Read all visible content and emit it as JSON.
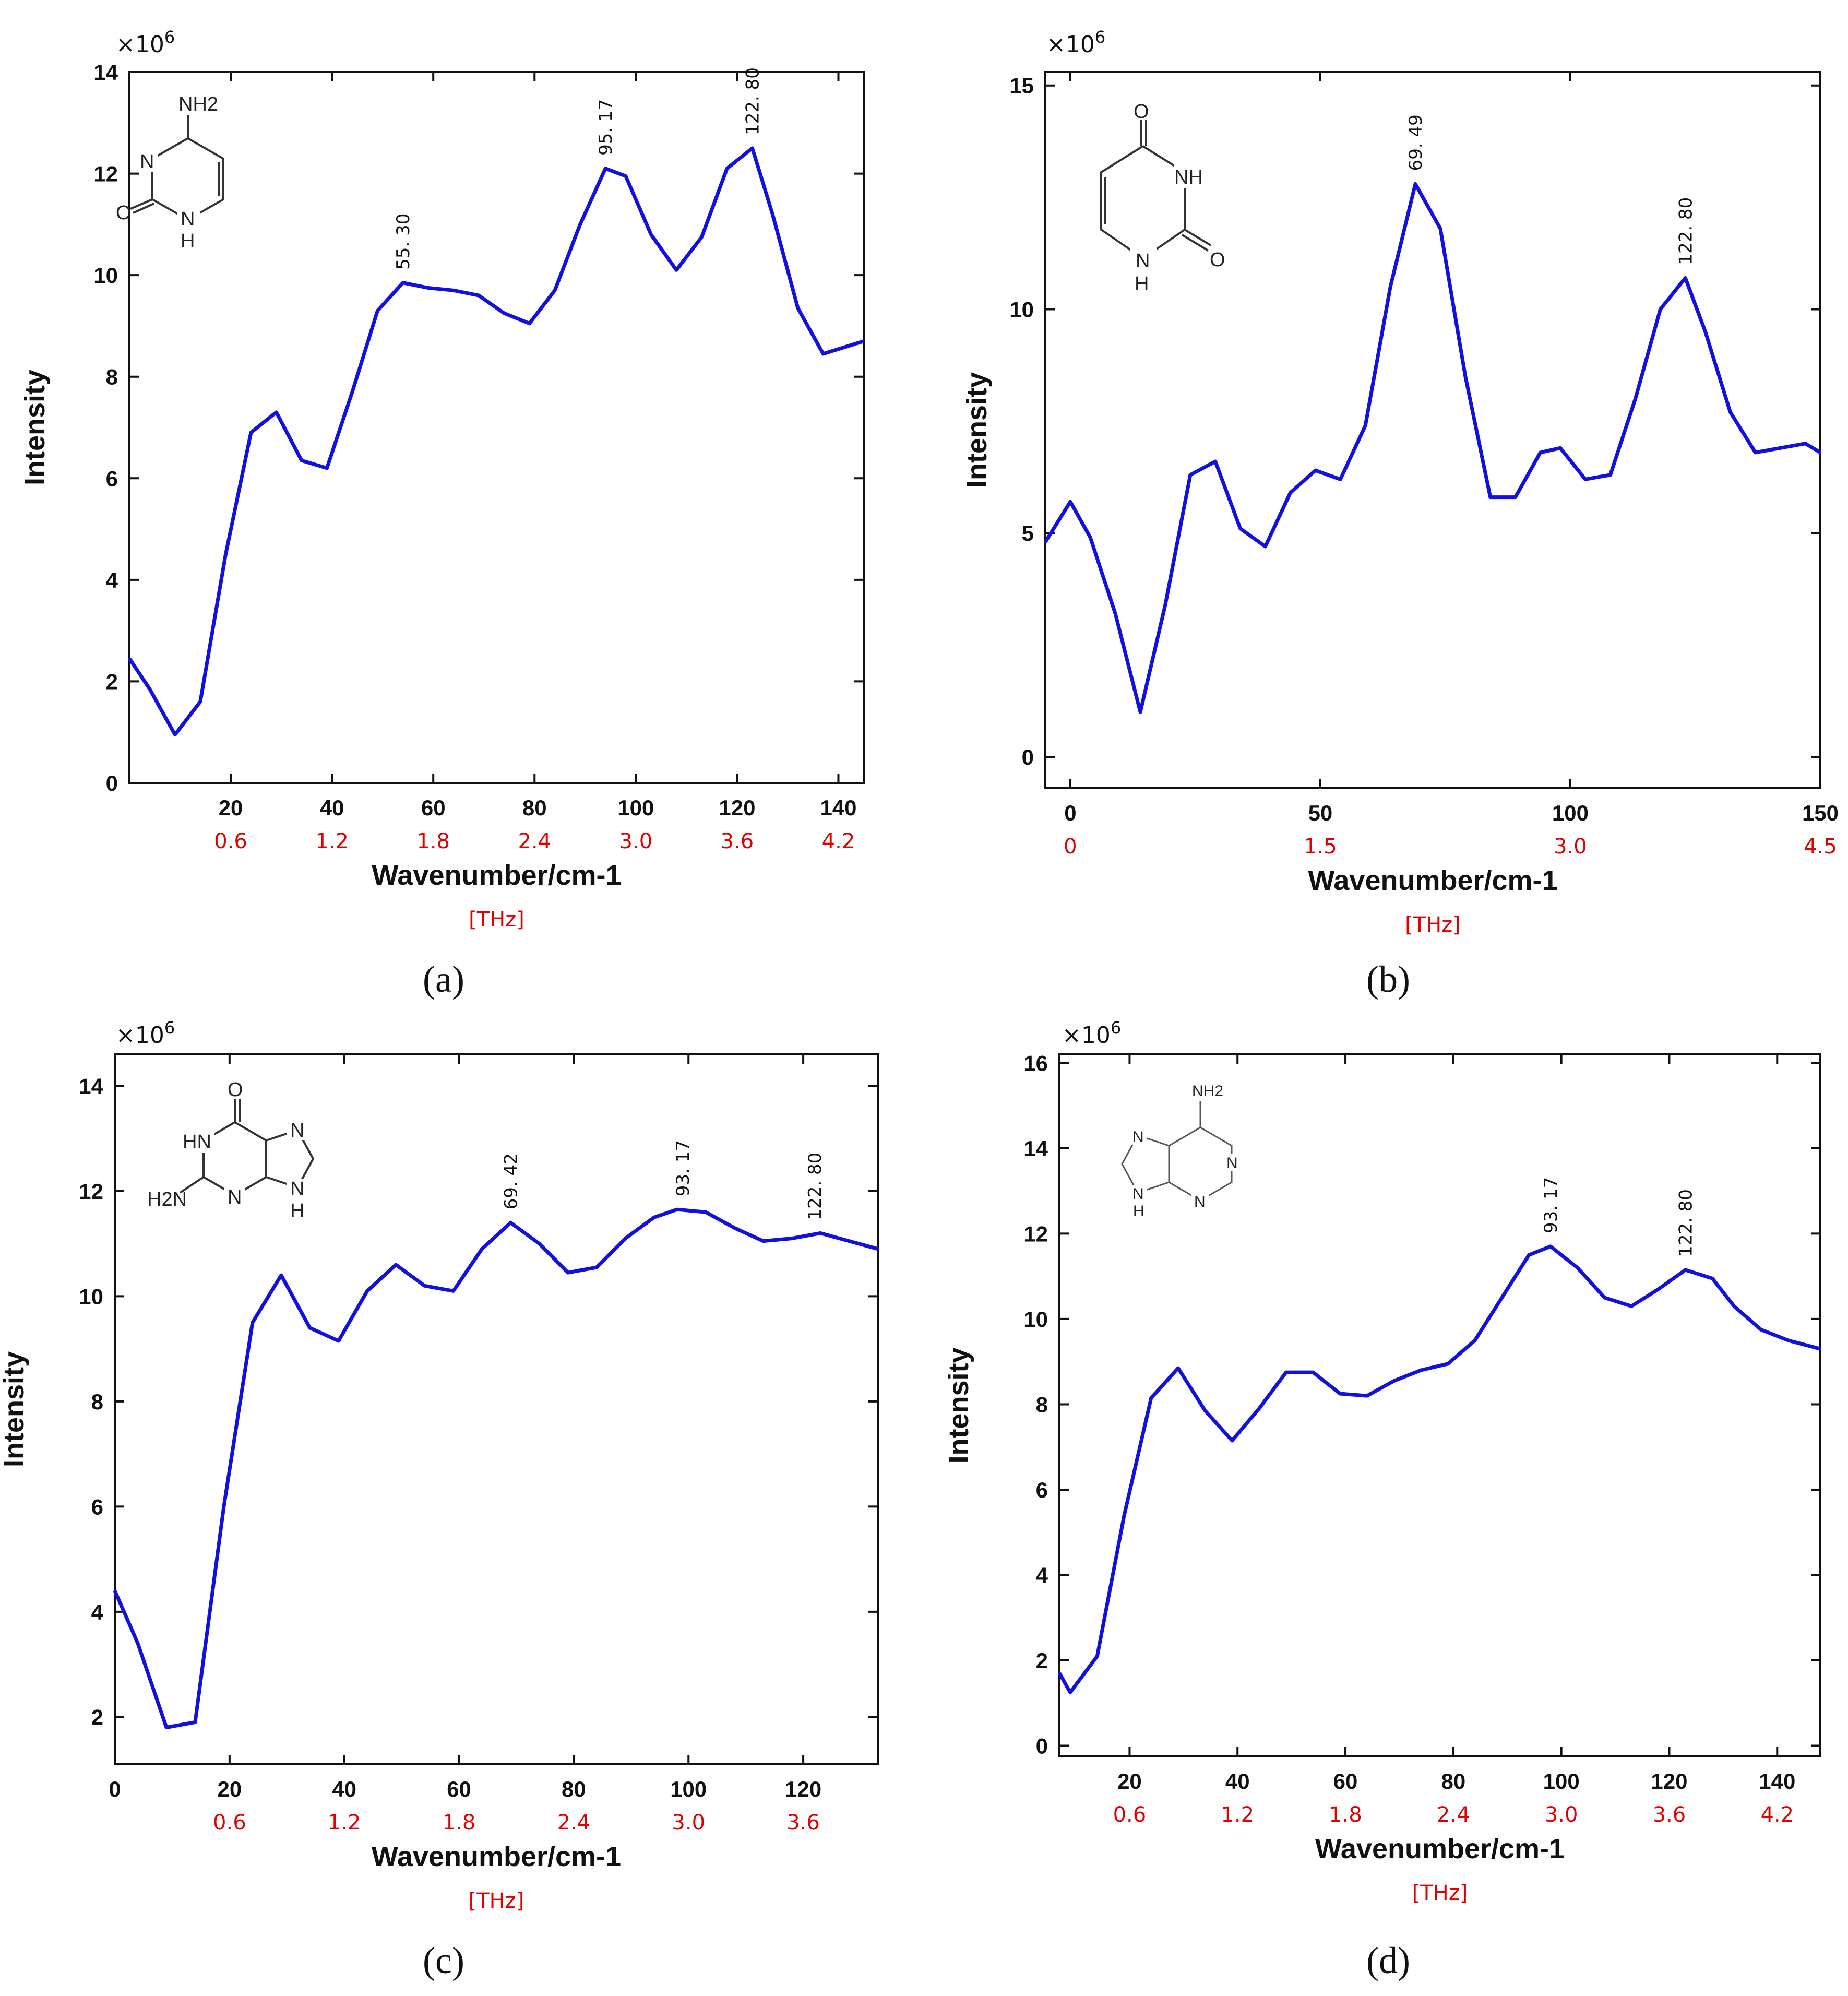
{
  "chart_data": [
    {
      "type": "line",
      "panel": "(a)",
      "multiplier": "×10",
      "multiplier_exp": "6",
      "xlabel": "Wavenumber/cm-1",
      "x2label": "[THz]",
      "ylabel": "Intensity",
      "xlim": [
        0,
        145
      ],
      "ylim": [
        0,
        14
      ],
      "xticks": [
        20,
        40,
        60,
        80,
        100,
        120,
        140
      ],
      "xtick_labels": [
        "20",
        "40",
        "60",
        "80",
        "100",
        "120",
        "140"
      ],
      "thz_labels": [
        "0.6",
        "1.2",
        "1.8",
        "2.4",
        "3.0",
        "3.6",
        "4.2"
      ],
      "yticks": [
        0,
        2,
        4,
        6,
        8,
        10,
        12,
        14
      ],
      "ytick_labels": [
        "0",
        "2",
        "4",
        "6",
        "8",
        "10",
        "12",
        "14"
      ],
      "line_color": "#1010e0",
      "x": [
        0,
        4,
        9,
        14,
        19,
        24,
        29,
        34,
        39,
        44,
        49,
        54,
        59,
        64,
        69,
        74,
        79,
        84,
        89,
        94,
        98,
        103,
        108,
        113,
        118,
        123,
        127,
        132,
        137,
        145
      ],
      "y": [
        2.45,
        1.85,
        0.95,
        1.6,
        4.5,
        6.9,
        7.3,
        6.35,
        6.2,
        7.7,
        9.3,
        9.85,
        9.75,
        9.7,
        9.6,
        9.25,
        9.05,
        9.7,
        11.0,
        12.1,
        11.95,
        10.8,
        10.1,
        10.75,
        12.1,
        12.5,
        11.2,
        9.35,
        8.45,
        8.7
      ],
      "annotations": [
        {
          "label": "55. 30",
          "x": 54,
          "y": 9.85
        },
        {
          "label": "95. 17",
          "x": 94,
          "y": 12.1
        },
        {
          "label": "122. 80",
          "x": 123,
          "y": 12.5
        }
      ],
      "molecule": "cytosine",
      "molecule_labels": [
        "NH2",
        "N",
        "O",
        "N",
        "H"
      ]
    },
    {
      "type": "line",
      "panel": "(b)",
      "multiplier": "×10",
      "multiplier_exp": "6",
      "xlabel": "Wavenumber/cm-1",
      "x2label": "[THz]",
      "ylabel": "Intensity",
      "xlim": [
        -5,
        150
      ],
      "ylim": [
        -0.7,
        15.3
      ],
      "xticks": [
        0,
        50,
        100,
        150
      ],
      "xtick_labels": [
        "0",
        "50",
        "100",
        "150"
      ],
      "thz_labels": [
        "0",
        "1.5",
        "3.0",
        "4.5"
      ],
      "yticks": [
        0,
        5,
        10,
        15
      ],
      "ytick_labels": [
        "0",
        "5",
        "10",
        "15"
      ],
      "line_color": "#1010e0",
      "x": [
        -5,
        0,
        4,
        9,
        14,
        19,
        24,
        29,
        34,
        39,
        44,
        49,
        54,
        59,
        64,
        69,
        74,
        79,
        84,
        89,
        94,
        98,
        103,
        108,
        113,
        118,
        123,
        127,
        132,
        137,
        142,
        147,
        150
      ],
      "y": [
        4.8,
        5.7,
        4.9,
        3.2,
        1.0,
        3.4,
        6.3,
        6.6,
        5.1,
        4.7,
        5.9,
        6.4,
        6.2,
        7.4,
        10.5,
        12.8,
        11.8,
        8.5,
        5.8,
        5.8,
        6.8,
        6.9,
        6.2,
        6.3,
        8.0,
        10.0,
        10.7,
        9.5,
        7.7,
        6.8,
        6.9,
        7.0,
        6.8
      ],
      "annotations": [
        {
          "label": "69. 49",
          "x": 69,
          "y": 12.8
        },
        {
          "label": "122. 80",
          "x": 123,
          "y": 10.7
        }
      ],
      "molecule": "uracil",
      "molecule_labels": [
        "O",
        "NH",
        "O",
        "N",
        "H"
      ]
    },
    {
      "type": "line",
      "panel": "(c)",
      "multiplier": "×10",
      "multiplier_exp": "6",
      "xlabel": "Wavenumber/cm-1",
      "x2label": "[THz]",
      "ylabel": "Intensity",
      "xlim": [
        0,
        133
      ],
      "ylim": [
        1.1,
        14.6
      ],
      "xticks": [
        0,
        20,
        40,
        60,
        80,
        100,
        120
      ],
      "xtick_labels": [
        "0",
        "20",
        "40",
        "60",
        "80",
        "100",
        "120"
      ],
      "thz_labels": [
        "",
        "0.6",
        "1.2",
        "1.8",
        "2.4",
        "3.0",
        "3.6"
      ],
      "yticks": [
        2,
        4,
        6,
        8,
        10,
        12,
        14
      ],
      "ytick_labels": [
        "2",
        "4",
        "6",
        "8",
        "10",
        "12",
        "14"
      ],
      "line_color": "#1010e0",
      "x": [
        0,
        4,
        9,
        14,
        19,
        24,
        29,
        34,
        39,
        44,
        49,
        54,
        59,
        64,
        69,
        74,
        79,
        84,
        89,
        94,
        98,
        103,
        108,
        113,
        118,
        123,
        128,
        133
      ],
      "y": [
        4.4,
        3.4,
        1.8,
        1.9,
        6.0,
        9.5,
        10.4,
        9.4,
        9.15,
        10.1,
        10.6,
        10.2,
        10.1,
        10.9,
        11.4,
        11.0,
        10.45,
        10.55,
        11.1,
        11.5,
        11.65,
        11.6,
        11.3,
        11.05,
        11.1,
        11.2,
        11.05,
        10.9
      ],
      "annotations": [
        {
          "label": "69. 42",
          "x": 69,
          "y": 11.4
        },
        {
          "label": "93. 17",
          "x": 99,
          "y": 11.65
        },
        {
          "label": "122. 80",
          "x": 122,
          "y": 11.2
        }
      ],
      "molecule": "guanine",
      "molecule_labels": [
        "O",
        "HN",
        "N",
        "H2N",
        "N",
        "N",
        "H"
      ]
    },
    {
      "type": "line",
      "panel": "(d)",
      "multiplier": "×10",
      "multiplier_exp": "6",
      "xlabel": "Wavenumber/cm-1",
      "x2label": "[THz]",
      "ylabel": "Intensity",
      "xlim": [
        7,
        148
      ],
      "ylim": [
        -0.25,
        16.2
      ],
      "xticks": [
        20,
        40,
        60,
        80,
        100,
        120,
        140
      ],
      "xtick_labels": [
        "20",
        "40",
        "60",
        "80",
        "100",
        "120",
        "140"
      ],
      "thz_labels": [
        "0.6",
        "1.2",
        "1.8",
        "2.4",
        "3.0",
        "3.6",
        "4.2"
      ],
      "yticks": [
        0,
        2,
        4,
        6,
        8,
        10,
        12,
        14,
        16
      ],
      "ytick_labels": [
        "0",
        "2",
        "4",
        "6",
        "8",
        "10",
        "12",
        "14",
        "16"
      ],
      "line_color": "#1010e0",
      "x": [
        7,
        9,
        14,
        19,
        24,
        29,
        34,
        39,
        44,
        49,
        54,
        59,
        64,
        69,
        74,
        79,
        84,
        89,
        94,
        98,
        103,
        108,
        113,
        118,
        123,
        128,
        132,
        137,
        142,
        148
      ],
      "y": [
        1.7,
        1.25,
        2.1,
        5.4,
        8.15,
        8.85,
        7.85,
        7.15,
        7.9,
        8.75,
        8.75,
        8.25,
        8.2,
        8.55,
        8.8,
        8.95,
        9.5,
        10.5,
        11.5,
        11.7,
        11.2,
        10.5,
        10.3,
        10.7,
        11.15,
        10.95,
        10.3,
        9.75,
        9.5,
        9.3
      ],
      "annotations": [
        {
          "label": "93. 17",
          "x": 98,
          "y": 11.7
        },
        {
          "label": "122. 80",
          "x": 123,
          "y": 11.15
        }
      ],
      "molecule": "adenine",
      "molecule_labels": [
        "NH2",
        "N",
        "N",
        "N",
        "N",
        "H"
      ]
    }
  ]
}
